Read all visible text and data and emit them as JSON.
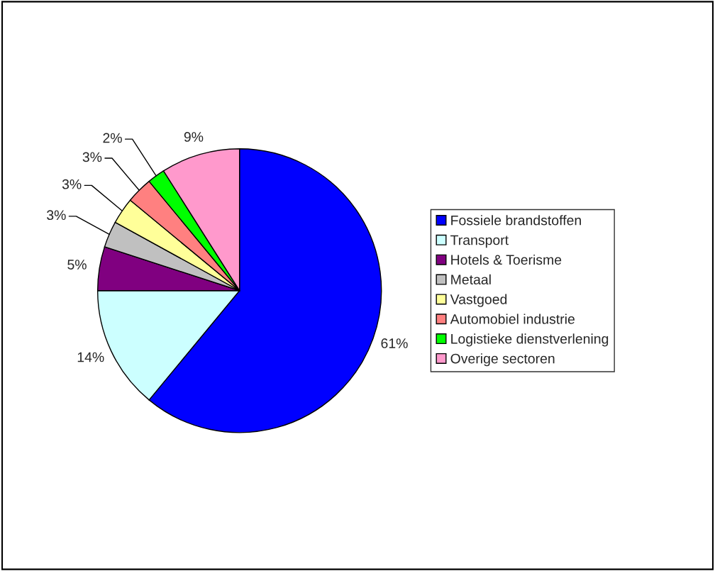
{
  "chart_data": {
    "type": "pie",
    "categories": [
      "Fossiele brandstoffen",
      "Transport",
      "Hotels & Toerisme",
      "Metaal",
      "Vastgoed",
      "Automobiel industrie",
      "Logistieke dienstverlening",
      "Overige sectoren"
    ],
    "values": [
      61,
      14,
      5,
      3,
      3,
      3,
      2,
      9
    ],
    "value_labels": [
      "61%",
      "14%",
      "5%",
      "3%",
      "3%",
      "3%",
      "2%",
      "9%"
    ],
    "colors": [
      "#0000ff",
      "#ccffff",
      "#800080",
      "#c0c0c0",
      "#ffff99",
      "#ff8080",
      "#00ff00",
      "#ff99cc"
    ],
    "legend": "right"
  }
}
